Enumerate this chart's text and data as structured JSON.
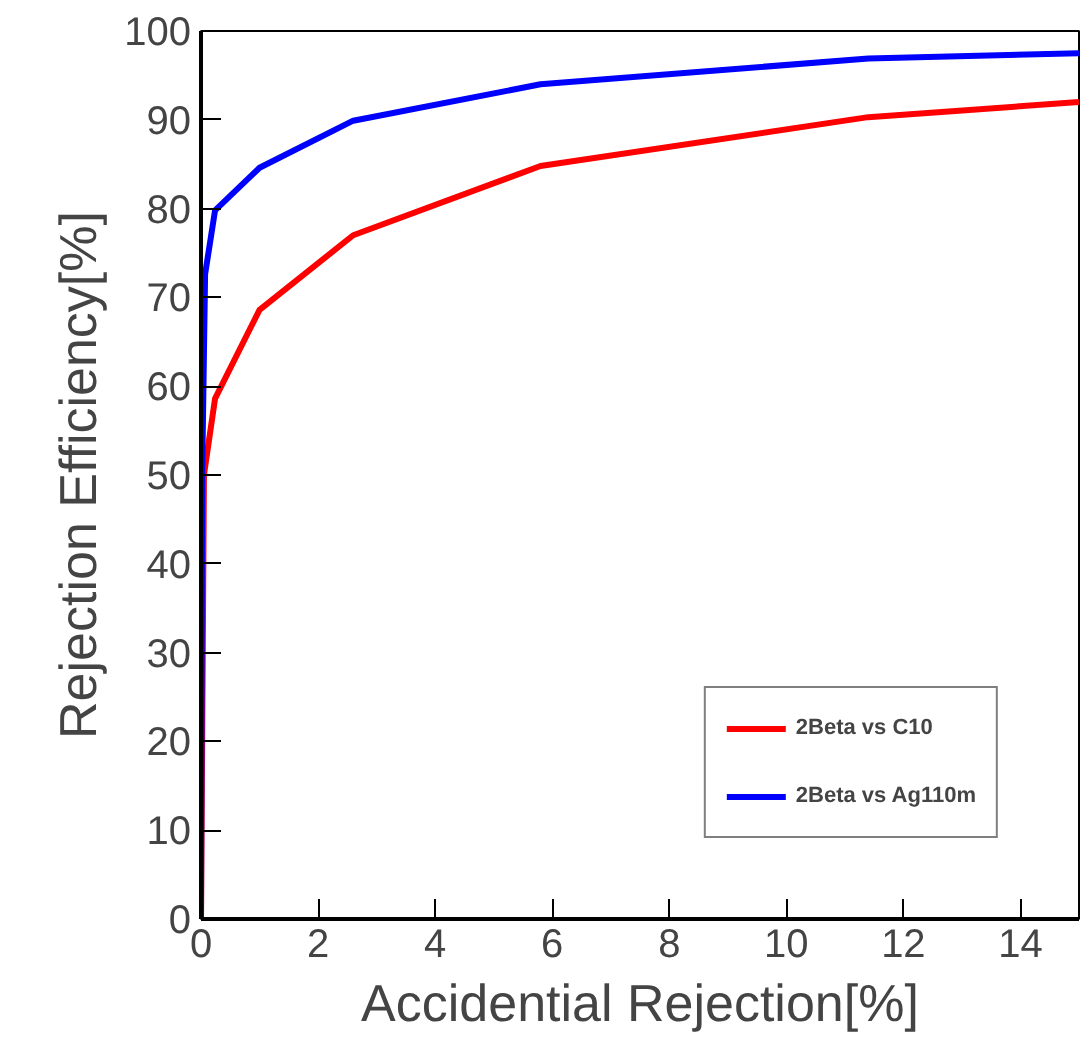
{
  "chart_data": {
    "type": "line",
    "xlabel": "Accidential Rejection[%]",
    "ylabel": "Rejection Efficiency[%]",
    "xlim": [
      0,
      15
    ],
    "ylim": [
      0,
      100
    ],
    "xticks": [
      0,
      2,
      4,
      6,
      8,
      10,
      12,
      14
    ],
    "yticks": [
      0,
      10,
      20,
      30,
      40,
      50,
      60,
      70,
      80,
      90,
      100
    ],
    "grid": false,
    "legend": "bottom right",
    "line_style": "solid",
    "series": [
      {
        "name": "2Beta vs C10",
        "color": "#ff0000",
        "x": [
          0,
          0.05,
          0.24,
          1.0,
          2.6,
          5.8,
          11.4,
          15
        ],
        "values": [
          0,
          50,
          58.6,
          68.6,
          77,
          84.8,
          90.3,
          92
        ]
      },
      {
        "name": "2Beta vs Ag110m",
        "color": "#0000ff",
        "x": [
          0,
          0.02,
          0.07,
          0.24,
          1.0,
          2.6,
          5.8,
          11.4,
          15
        ],
        "values": [
          0,
          50,
          72.6,
          79.8,
          84.6,
          89.9,
          94,
          96.9,
          97.5
        ]
      }
    ]
  }
}
